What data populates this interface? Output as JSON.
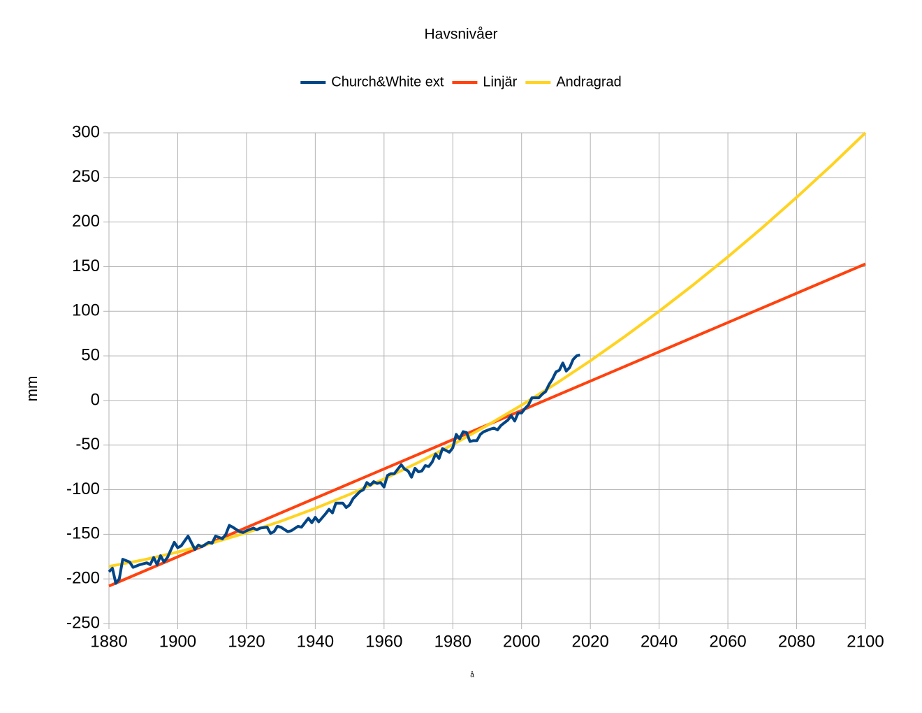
{
  "chart_data": {
    "type": "line",
    "title": "Havsnivåer",
    "xlabel": "å",
    "ylabel": "mm",
    "xlim": [
      1880,
      2100
    ],
    "xticks": [
      1880,
      1900,
      1920,
      1940,
      1960,
      1980,
      2000,
      2020,
      2040,
      2060,
      2080,
      2100
    ],
    "ylim": [
      -250,
      300
    ],
    "yticks": [
      -250,
      -200,
      -150,
      -100,
      -50,
      0,
      50,
      100,
      150,
      200,
      250,
      300
    ],
    "grid": true,
    "legend": "top",
    "series": [
      {
        "name": "Church&White ext",
        "color": "#004586",
        "x": [
          1880,
          1881,
          1882,
          1883,
          1884,
          1886,
          1887,
          1889,
          1891,
          1892,
          1893,
          1894,
          1895,
          1896,
          1897,
          1899,
          1900,
          1901,
          1903,
          1905,
          1906,
          1907,
          1909,
          1910,
          1911,
          1913,
          1914,
          1915,
          1916,
          1918,
          1919,
          1920,
          1922,
          1923,
          1924,
          1926,
          1927,
          1928,
          1929,
          1930,
          1932,
          1933,
          1935,
          1936,
          1938,
          1939,
          1940,
          1941,
          1943,
          1944,
          1945,
          1946,
          1948,
          1949,
          1950,
          1951,
          1952,
          1953,
          1954,
          1955,
          1956,
          1957,
          1958,
          1959,
          1960,
          1961,
          1962,
          1963,
          1964,
          1965,
          1966,
          1967,
          1968,
          1969,
          1970,
          1971,
          1972,
          1973,
          1974,
          1975,
          1976,
          1977,
          1978,
          1979,
          1980,
          1981,
          1982,
          1983,
          1984,
          1985,
          1986,
          1987,
          1988,
          1989,
          1991,
          1992,
          1993,
          1994,
          1995,
          1996,
          1997,
          1998,
          1999,
          2000,
          2001,
          2002,
          2003,
          2005,
          2006,
          2007,
          2008,
          2009,
          2010,
          2011,
          2012,
          2013,
          2014,
          2015,
          2016,
          2017
        ],
        "values": [
          -192,
          -188,
          -205,
          -200,
          -178,
          -181,
          -187,
          -184,
          -182,
          -184,
          -176,
          -184,
          -174,
          -181,
          -176,
          -159,
          -165,
          -163,
          -152,
          -167,
          -162,
          -164,
          -159,
          -160,
          -152,
          -155,
          -150,
          -140,
          -142,
          -147,
          -148,
          -146,
          -143,
          -145,
          -143,
          -142,
          -149,
          -147,
          -141,
          -142,
          -147,
          -146,
          -141,
          -142,
          -132,
          -137,
          -131,
          -136,
          -127,
          -122,
          -126,
          -115,
          -115,
          -120,
          -117,
          -110,
          -106,
          -102,
          -100,
          -92,
          -95,
          -91,
          -93,
          -92,
          -97,
          -84,
          -82,
          -82,
          -77,
          -72,
          -77,
          -79,
          -86,
          -76,
          -80,
          -79,
          -73,
          -74,
          -69,
          -60,
          -65,
          -54,
          -56,
          -58,
          -53,
          -38,
          -43,
          -35,
          -36,
          -46,
          -45,
          -45,
          -38,
          -35,
          -32,
          -31,
          -33,
          -28,
          -25,
          -22,
          -17,
          -23,
          -14,
          -14,
          -9,
          -5,
          3,
          3,
          7,
          10,
          18,
          24,
          32,
          34,
          42,
          33,
          37,
          46,
          50,
          51
        ]
      },
      {
        "name": "Linjär",
        "color": "#ff420e",
        "x": [
          1880,
          2100
        ],
        "values": [
          -208,
          153
        ]
      },
      {
        "name": "Andragrad",
        "color": "#ffd320",
        "x": [
          1880,
          1890,
          1900,
          1910,
          1920,
          1930,
          1940,
          1950,
          1960,
          1970,
          1980,
          1990,
          2000,
          2010,
          2020,
          2030,
          2040,
          2050,
          2060,
          2070,
          2080,
          2090,
          2100
        ],
        "values": [
          -186,
          -178.7,
          -169.9,
          -159.8,
          -148.2,
          -135.3,
          -120.9,
          -105.2,
          -88.0,
          -69.4,
          -49.4,
          -28.0,
          -5.2,
          18.9,
          44.5,
          71.6,
          100,
          129.8,
          161.0,
          193.6,
          227.7,
          263.1,
          300
        ]
      }
    ]
  }
}
